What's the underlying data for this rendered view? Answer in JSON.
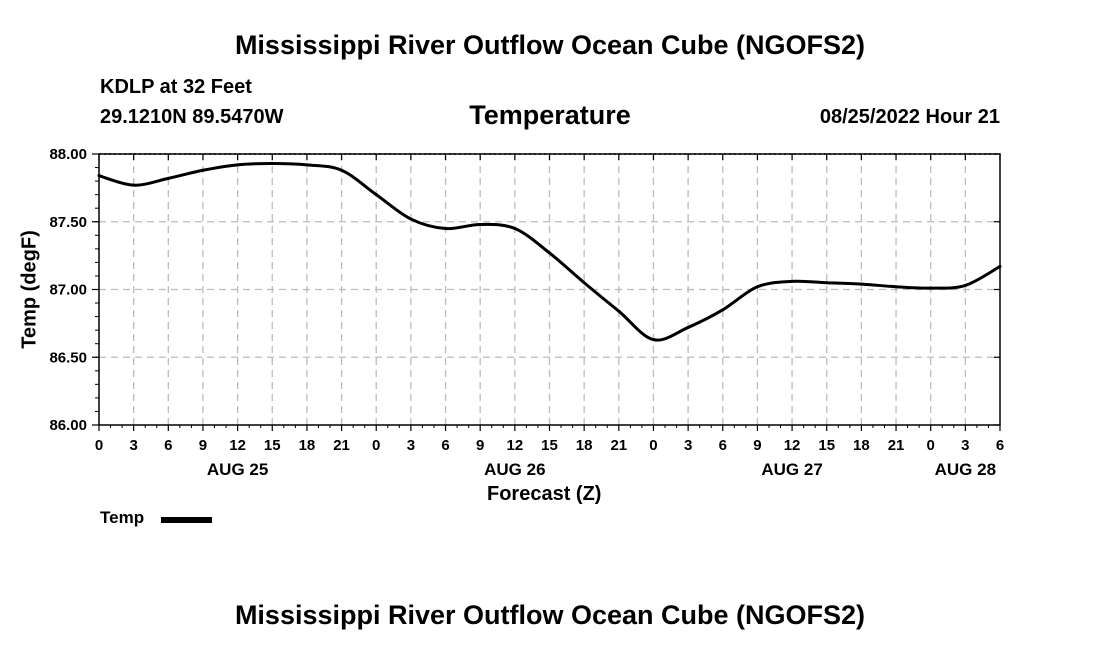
{
  "header": {
    "main_title": "Mississippi River Outflow Ocean Cube (NGOFS2)",
    "station": "KDLP at 32 Feet",
    "coords": "29.1210N  89.5470W",
    "variable": "Temperature",
    "run_time": "08/25/2022 Hour 21",
    "bottom_title": "Mississippi River Outflow Ocean Cube (NGOFS2)"
  },
  "legend": {
    "label": "Temp",
    "line_color": "#000000"
  },
  "colors": {
    "line": "#000000",
    "grid": "#bbbbbb",
    "frame": "#000000"
  },
  "chart_data": {
    "type": "line",
    "title": "Temperature",
    "xlabel": "Forecast (Z)",
    "ylabel": "Temp (degF)",
    "ylim": [
      86.0,
      88.0
    ],
    "yticks": [
      86.0,
      86.5,
      87.0,
      87.5,
      88.0
    ],
    "ytick_labels": [
      "86.00",
      "86.50",
      "87.00",
      "87.50",
      "88.00"
    ],
    "xlim": [
      0,
      78
    ],
    "xticks": [
      0,
      3,
      6,
      9,
      12,
      15,
      18,
      21,
      24,
      27,
      30,
      33,
      36,
      39,
      42,
      45,
      48,
      51,
      54,
      57,
      60,
      63,
      66,
      69,
      72,
      75,
      78
    ],
    "xtick_labels": [
      "0",
      "3",
      "6",
      "9",
      "12",
      "15",
      "18",
      "21",
      "0",
      "3",
      "6",
      "9",
      "12",
      "15",
      "18",
      "21",
      "0",
      "3",
      "6",
      "9",
      "12",
      "15",
      "18",
      "21",
      "0",
      "3",
      "6"
    ],
    "day_labels": [
      {
        "label": "AUG 25",
        "hour": 12
      },
      {
        "label": "AUG 26",
        "hour": 36
      },
      {
        "label": "AUG 27",
        "hour": 60
      },
      {
        "label": "AUG 28",
        "hour": 75
      }
    ],
    "grid": true,
    "series": [
      {
        "name": "Temp",
        "x": [
          0,
          3,
          6,
          9,
          12,
          15,
          18,
          21,
          24,
          27,
          30,
          33,
          36,
          39,
          42,
          45,
          48,
          51,
          54,
          57,
          60,
          63,
          66,
          69,
          72,
          75,
          78
        ],
        "values": [
          87.84,
          87.77,
          87.82,
          87.88,
          87.92,
          87.93,
          87.92,
          87.88,
          87.7,
          87.52,
          87.45,
          87.48,
          87.45,
          87.27,
          87.05,
          86.84,
          86.63,
          86.72,
          86.85,
          87.02,
          87.06,
          87.05,
          87.04,
          87.02,
          87.01,
          87.03,
          87.17
        ]
      }
    ]
  }
}
